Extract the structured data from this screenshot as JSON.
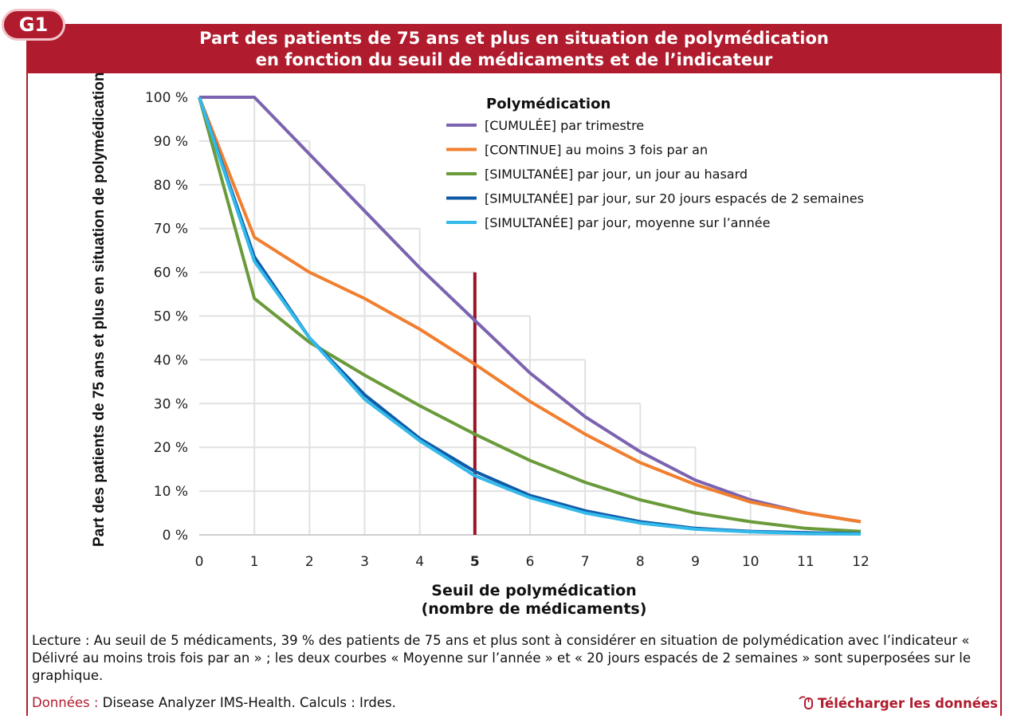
{
  "badge": "G1",
  "title_line1": "Part des patients de 75 ans et plus en situation de polymédication",
  "title_line2": "en fonction du seuil de médicaments et de l’indicateur",
  "download_label": "Télécharger les données",
  "download_icon": "mouse-click-icon",
  "colors": {
    "brand": "#b01c2e",
    "cumulee": "#7b63b0",
    "continue": "#f07f2f",
    "hasard": "#6a9a3a",
    "jours20": "#0f5aa8",
    "moyenne": "#33b9ea",
    "threshold": "#9b1424"
  },
  "note": {
    "text": "Lecture : Au seuil de 5 médicaments, 39 % des patients de 75 ans et plus sont à considérer en situation de polymédication avec l’indicateur « Délivré au moins trois fois par an » ; les deux courbes « Moyenne sur l’année » et « 20 jours espacés de 2 semaines » sont superposées sur le graphique."
  },
  "source": {
    "label": "Données :",
    "text": "Disease Analyzer IMS-Health. Calculs : Irdes."
  },
  "chart_data": {
    "type": "line",
    "title": "Part des patients de 75 ans et plus en situation de polymédication en fonction du seuil de médicaments et de l’indicateur",
    "xlabel": "Seuil de polymédication (nombre de médicaments)",
    "xlabel_line1": "Seuil de polymédication",
    "xlabel_line2": "(nombre de médicaments)",
    "ylabel": "Part des patients de 75 ans et plus en situation de polymédication",
    "x": [
      0,
      1,
      2,
      3,
      4,
      5,
      6,
      7,
      8,
      9,
      10,
      11,
      12
    ],
    "xlim": [
      0,
      12
    ],
    "ylim": [
      0,
      100
    ],
    "y_ticks": [
      "0 %",
      "10 %",
      "20 %",
      "30 %",
      "40 %",
      "50 %",
      "60 %",
      "70 %",
      "80 %",
      "90 %",
      "100 %"
    ],
    "highlight_x": 5,
    "legend_title": "Polymédication",
    "legend_position": "top-right",
    "series": [
      {
        "name": "[CUMULÉE] par trimestre",
        "color_key": "cumulee",
        "values": [
          100,
          100,
          87,
          74,
          61,
          49,
          37,
          27,
          19,
          12.5,
          8,
          5,
          3
        ]
      },
      {
        "name": "[CONTINUE] au moins 3 fois par an",
        "color_key": "continue",
        "values": [
          100,
          68,
          60,
          54,
          47,
          39,
          30.5,
          23,
          16.5,
          11.5,
          7.5,
          5,
          3
        ]
      },
      {
        "name": "[SIMULTANÉE] par jour, un jour au hasard",
        "color_key": "hasard",
        "values": [
          100,
          54,
          44,
          36.5,
          29.5,
          23,
          17,
          12,
          8,
          5,
          3,
          1.5,
          0.8
        ]
      },
      {
        "name": "[SIMULTANÉE] par jour, sur 20 jours espacés de 2 semaines",
        "color_key": "jours20",
        "values": [
          100,
          63.5,
          45,
          32,
          22,
          14.5,
          9,
          5.5,
          3,
          1.5,
          0.8,
          0.5,
          0.3
        ]
      },
      {
        "name": "[SIMULTANÉE] par jour, moyenne sur l’année",
        "color_key": "moyenne",
        "values": [
          100,
          62.5,
          45,
          31,
          21.5,
          13.5,
          8.5,
          5,
          2.7,
          1.3,
          0.7,
          0.3,
          0.2
        ]
      }
    ]
  }
}
